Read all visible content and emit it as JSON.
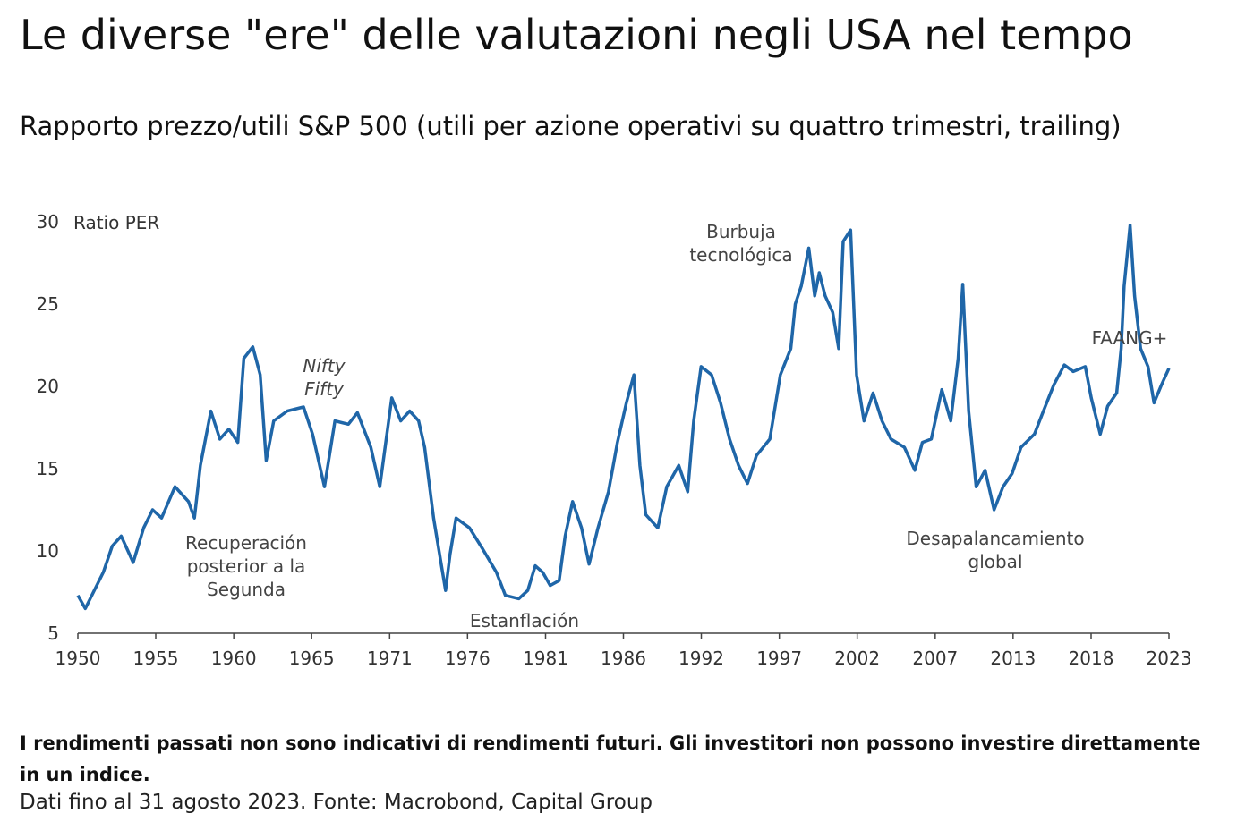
{
  "chart_data": {
    "type": "line",
    "title": "Le diverse \"ere\" delle valutazioni negli USA nel tempo",
    "subtitle": "Rapporto prezzo/utili S&P 500 (utili per azione operativi su quattro trimestri, trailing)",
    "y_label": "Ratio PER",
    "annotations": [
      {
        "lines": [
          "Recuperación",
          "posterior a la",
          "Segunda"
        ]
      },
      {
        "lines": [
          "Nifty",
          "Fifty"
        ]
      },
      {
        "lines": [
          "Estanflación"
        ]
      },
      {
        "lines": [
          "Burbuja",
          "tecnológica"
        ]
      },
      {
        "lines": [
          "Desapalancamiento",
          "global"
        ]
      },
      {
        "lines": [
          "FAANG+"
        ]
      }
    ],
    "footnote_bold": "I rendimenti passati non sono indicativi di rendimenti futuri. Gli investitori non possono investire direttamente in un indice.",
    "source": "Dati fino al 31 agosto 2023. Fonte: Macrobond, Capital Group",
    "xlim": [
      1950,
      2023
    ],
    "xticks": [
      1950,
      {
        "value": 1955.21,
        "label": "1955"
      },
      {
        "value": 1960.43,
        "label": "1960"
      },
      {
        "value": 1965.64,
        "label": "1965"
      },
      {
        "value": 1970.86,
        "label": "1971"
      },
      {
        "value": 1976.07,
        "label": "1976"
      },
      {
        "value": 1981.29,
        "label": "1981"
      },
      {
        "value": 1986.5,
        "label": "1986"
      },
      {
        "value": 1991.71,
        "label": "1992"
      },
      {
        "value": 1996.93,
        "label": "1997"
      },
      {
        "value": 2002.14,
        "label": "2002"
      },
      {
        "value": 2007.36,
        "label": "2007"
      },
      {
        "value": 2012.57,
        "label": "2013"
      },
      {
        "value": 2017.79,
        "label": "2018"
      },
      2023
    ],
    "ylim": [
      5,
      30
    ],
    "yticks": [
      5,
      10,
      15,
      20,
      25,
      30
    ],
    "grid": false,
    "series": [
      {
        "color": "#1f66a8",
        "x": [
          1950.0,
          1950.5,
          1951.7,
          1952.3,
          1952.9,
          1953.7,
          1954.4,
          1955.0,
          1955.6,
          1956.5,
          1957.4,
          1957.8,
          1958.2,
          1958.9,
          1959.5,
          1960.1,
          1960.7,
          1961.1,
          1961.7,
          1962.2,
          1962.6,
          1963.1,
          1964.0,
          1965.1,
          1965.7,
          1966.5,
          1967.2,
          1968.1,
          1968.7,
          1969.6,
          1970.2,
          1971.0,
          1971.6,
          1972.2,
          1972.8,
          1973.2,
          1973.8,
          1974.6,
          1974.9,
          1975.3,
          1976.2,
          1977.1,
          1978.0,
          1978.6,
          1979.5,
          1980.1,
          1980.6,
          1981.1,
          1981.6,
          1982.2,
          1982.6,
          1983.1,
          1983.7,
          1984.2,
          1984.8,
          1985.5,
          1986.1,
          1986.7,
          1987.2,
          1987.6,
          1988.0,
          1988.8,
          1989.4,
          1990.2,
          1990.8,
          1991.2,
          1991.7,
          1992.4,
          1993.0,
          1993.6,
          1994.2,
          1994.8,
          1995.4,
          1996.3,
          1997.0,
          1997.7,
          1998.0,
          1998.4,
          1998.9,
          1999.3,
          1999.6,
          2000.0,
          2000.5,
          2000.9,
          2001.2,
          2001.7,
          2002.1,
          2002.6,
          2003.2,
          2003.8,
          2004.4,
          2005.3,
          2006.0,
          2006.5,
          2007.1,
          2007.8,
          2008.4,
          2008.9,
          2009.2,
          2009.6,
          2010.1,
          2010.7,
          2011.3,
          2011.9,
          2012.5,
          2013.1,
          2014.0,
          2014.6,
          2015.3,
          2016.0,
          2016.6,
          2017.4,
          2017.8,
          2018.4,
          2018.9,
          2019.5,
          2019.8,
          2020.0,
          2020.4,
          2020.7,
          2021.1,
          2021.6,
          2022.0,
          2022.5,
          2023.0
        ],
        "values": [
          7.3,
          6.5,
          8.7,
          10.3,
          10.9,
          9.3,
          11.4,
          12.5,
          12.0,
          13.9,
          13.0,
          12.0,
          15.2,
          18.5,
          16.8,
          17.4,
          16.6,
          21.7,
          22.4,
          20.7,
          15.5,
          17.9,
          18.5,
          18.75,
          17.1,
          13.9,
          17.9,
          17.7,
          18.4,
          16.3,
          13.9,
          19.3,
          17.9,
          18.5,
          17.9,
          16.3,
          12.0,
          7.6,
          9.8,
          12.0,
          11.4,
          10.1,
          8.7,
          7.3,
          7.1,
          7.6,
          9.1,
          8.7,
          7.9,
          8.2,
          10.9,
          13.0,
          11.4,
          9.2,
          11.4,
          13.6,
          16.6,
          19.0,
          20.7,
          15.2,
          12.2,
          11.4,
          13.9,
          15.2,
          13.6,
          17.9,
          21.2,
          20.7,
          19.0,
          16.8,
          15.2,
          14.1,
          15.8,
          16.8,
          20.7,
          22.3,
          25.0,
          26.1,
          28.4,
          25.5,
          26.9,
          25.5,
          24.5,
          22.3,
          28.8,
          29.5,
          20.7,
          17.9,
          19.6,
          17.9,
          16.8,
          16.3,
          14.9,
          16.6,
          16.8,
          19.8,
          17.9,
          21.7,
          26.2,
          18.5,
          13.9,
          14.9,
          12.5,
          13.9,
          14.7,
          16.3,
          17.1,
          18.5,
          20.1,
          21.3,
          20.9,
          21.2,
          19.3,
          17.1,
          18.8,
          19.6,
          22.3,
          26.1,
          29.8,
          25.5,
          22.3,
          21.2,
          19.0,
          20.1,
          21.1
        ]
      }
    ]
  }
}
